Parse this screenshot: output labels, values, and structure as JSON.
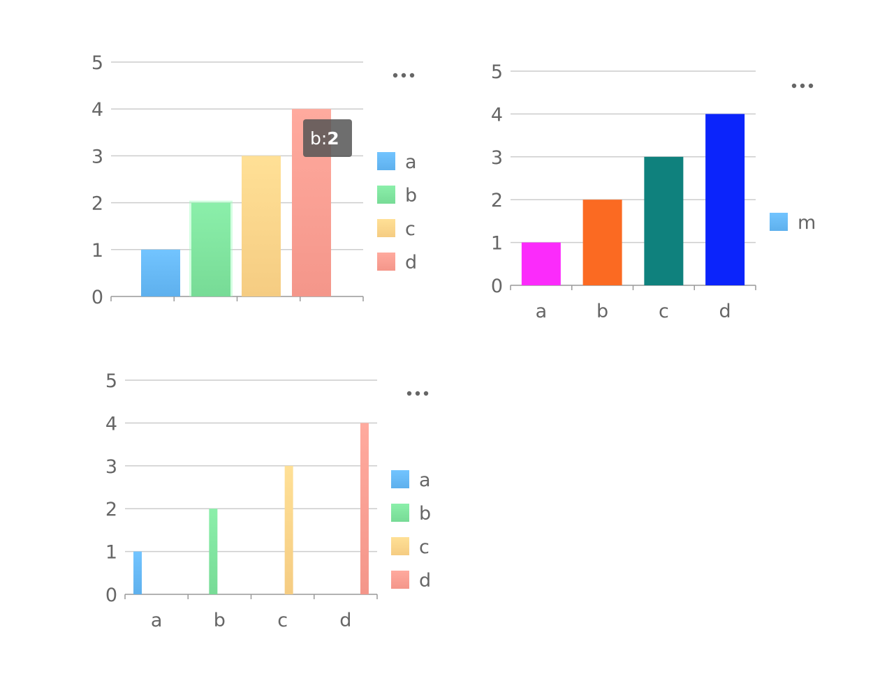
{
  "colors": {
    "grid": "#cccccc",
    "axis": "#999999",
    "text": "#666666",
    "menu": "#666666",
    "tooltip_bg": "#555555"
  },
  "charts": [
    {
      "id": "chart1",
      "menu_icon": "more-horizontal-icon",
      "legend": [
        {
          "label": "a",
          "color": "#66b8f5"
        },
        {
          "label": "b",
          "color": "#7fe39e"
        },
        {
          "label": "c",
          "color": "#fdd48a"
        },
        {
          "label": "d",
          "color": "#fc9e92"
        }
      ],
      "tooltip": {
        "label": "b:",
        "value": "2"
      }
    },
    {
      "id": "chart2",
      "menu_icon": "more-horizontal-icon",
      "legend": [
        {
          "label": "m",
          "color": "#66b8f5"
        }
      ]
    },
    {
      "id": "chart3",
      "menu_icon": "more-horizontal-icon",
      "legend": [
        {
          "label": "a",
          "color": "#66b8f5"
        },
        {
          "label": "b",
          "color": "#7fe39e"
        },
        {
          "label": "c",
          "color": "#fdd48a"
        },
        {
          "label": "d",
          "color": "#fc9e92"
        }
      ]
    }
  ],
  "chart_data": [
    {
      "type": "bar",
      "categories": [
        "a",
        "b",
        "c",
        "d"
      ],
      "series": [
        {
          "values": [
            1,
            2,
            3,
            4
          ]
        }
      ],
      "bar_colors": [
        "#66b8f5",
        "#7fe39e",
        "#fdd48a",
        "#fc9e92"
      ],
      "ylim": [
        0,
        5
      ],
      "yticks": [
        "0",
        "1",
        "2",
        "3",
        "4",
        "5"
      ],
      "show_x_labels": false,
      "grid": true,
      "legend_position": "right",
      "highlighted_category": "b"
    },
    {
      "type": "bar",
      "categories": [
        "a",
        "b",
        "c",
        "d"
      ],
      "series": [
        {
          "name": "m",
          "values": [
            1,
            2,
            3,
            4
          ]
        }
      ],
      "bar_colors": [
        "#fb2bfb",
        "#fb6a22",
        "#0f817d",
        "#0b24fb"
      ],
      "ylim": [
        0,
        5
      ],
      "yticks": [
        "0",
        "1",
        "2",
        "3",
        "4",
        "5"
      ],
      "show_x_labels": true,
      "grid": true,
      "legend_position": "right"
    },
    {
      "type": "bar",
      "categories": [
        "a",
        "b",
        "c",
        "d"
      ],
      "series": [
        {
          "name": "a",
          "values": [
            1,
            0,
            0,
            0
          ]
        },
        {
          "name": "b",
          "values": [
            0,
            2,
            0,
            0
          ]
        },
        {
          "name": "c",
          "values": [
            0,
            0,
            3,
            0
          ]
        },
        {
          "name": "d",
          "values": [
            0,
            0,
            0,
            4
          ]
        }
      ],
      "series_colors": [
        "#66b8f5",
        "#7fe39e",
        "#fdd48a",
        "#fc9e92"
      ],
      "ylim": [
        0,
        5
      ],
      "yticks": [
        "0",
        "1",
        "2",
        "3",
        "4",
        "5"
      ],
      "show_x_labels": true,
      "grid": true,
      "legend_position": "right"
    }
  ]
}
